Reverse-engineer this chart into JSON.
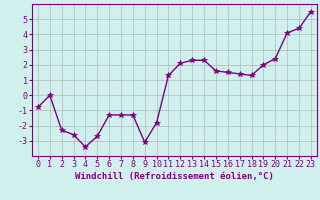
{
  "x": [
    0,
    1,
    2,
    3,
    4,
    5,
    6,
    7,
    8,
    9,
    10,
    11,
    12,
    13,
    14,
    15,
    16,
    17,
    18,
    19,
    20,
    21,
    22,
    23
  ],
  "y": [
    -0.8,
    0.0,
    -2.3,
    -2.6,
    -3.4,
    -2.7,
    -1.3,
    -1.3,
    -1.3,
    -3.1,
    -1.8,
    1.3,
    2.1,
    2.3,
    2.3,
    1.6,
    1.5,
    1.4,
    1.3,
    2.0,
    2.4,
    4.1,
    4.4,
    5.5
  ],
  "line_color": "#800080",
  "marker": "*",
  "marker_size": 4,
  "bg_color": "#cff0ec",
  "grid_color": "#aaaaaa",
  "xlabel": "Windchill (Refroidissement éolien,°C)",
  "ylim": [
    -4,
    6
  ],
  "xlim": [
    -0.5,
    23.5
  ],
  "yticks": [
    -3,
    -2,
    -1,
    0,
    1,
    2,
    3,
    4,
    5
  ],
  "xticks": [
    0,
    1,
    2,
    3,
    4,
    5,
    6,
    7,
    8,
    9,
    10,
    11,
    12,
    13,
    14,
    15,
    16,
    17,
    18,
    19,
    20,
    21,
    22,
    23
  ],
  "xtick_labels": [
    "0",
    "1",
    "2",
    "3",
    "4",
    "5",
    "6",
    "7",
    "8",
    "9",
    "10",
    "11",
    "12",
    "13",
    "14",
    "15",
    "16",
    "17",
    "18",
    "19",
    "20",
    "21",
    "22",
    "23"
  ],
  "purple_color": "#800080",
  "label_fontsize": 6.5,
  "tick_fontsize": 6,
  "line_width": 1.0
}
